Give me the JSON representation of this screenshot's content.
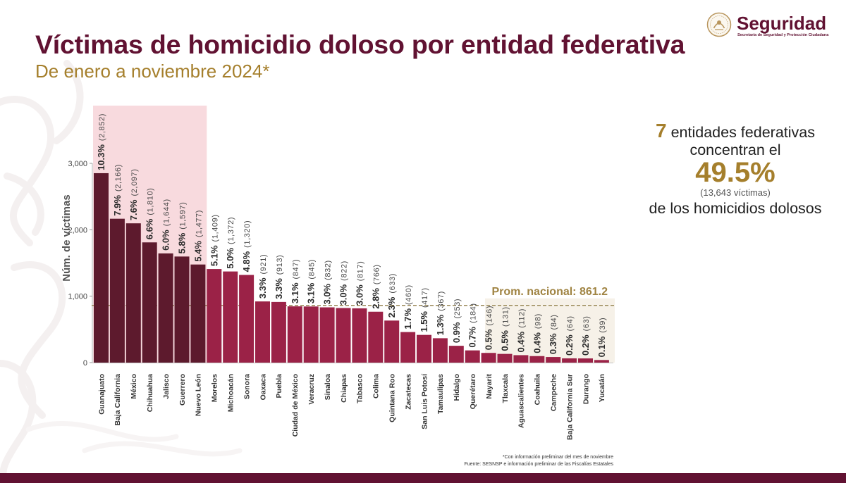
{
  "header": {
    "title": "Víctimas de homicidio doloso por entidad federativa",
    "subtitle": "De enero a noviembre 2024*"
  },
  "logo": {
    "icon": "national-seal-icon",
    "name": "Seguridad",
    "agency": "Secretaría de Seguridad y Protección Ciudadana"
  },
  "summary": {
    "count": "7",
    "line1": "entidades federativas",
    "line2": "concentran el",
    "percent": "49.5%",
    "victims": "(13,643 víctimas)",
    "line3": "de los homicidios dolosos"
  },
  "footnotes": {
    "note": "*Con información preliminar del mes de noviembre",
    "source": "Fuente: SESNSP e información preliminar de las Fiscalías Estatales"
  },
  "colors": {
    "brand_maroon": "#611232",
    "accent_gold": "#a57f2c",
    "highlight_bar": "#5d1a2d",
    "bar": "#9b2247",
    "highlight_band": "#f8dade",
    "below_average_band": "#f6f1e8",
    "average_line": "#9b8a5a",
    "footer_band": "#611232"
  },
  "chart_data": {
    "type": "bar",
    "ylabel": "Núm. de víctimas",
    "ylim": [
      0,
      3000
    ],
    "y_ticks": [
      0,
      1000,
      2000,
      3000
    ],
    "y_tick_labels": [
      "0",
      "1,000",
      "2,000",
      "3,000"
    ],
    "categories": [
      "Guanajuato",
      "Baja California",
      "México",
      "Chihuahua",
      "Jalisco",
      "Guerrero",
      "Nuevo León",
      "Morelos",
      "Michoacán",
      "Sonora",
      "Oaxaca",
      "Puebla",
      "Ciudad de México",
      "Veracruz",
      "Sinaloa",
      "Chiapas",
      "Tabasco",
      "Colima",
      "Quintana Roo",
      "Zacatecas",
      "San Luis Potosí",
      "Tamaulipas",
      "Hidalgo",
      "Querétaro",
      "Nayarit",
      "Tlaxcala",
      "Aguascalientes",
      "Coahuila",
      "Campeche",
      "Baja California Sur",
      "Durango",
      "Yucatán"
    ],
    "values": [
      2852,
      2166,
      2097,
      1810,
      1644,
      1597,
      1477,
      1409,
      1372,
      1320,
      921,
      913,
      847,
      845,
      832,
      822,
      817,
      766,
      633,
      460,
      417,
      367,
      253,
      184,
      146,
      131,
      112,
      98,
      84,
      64,
      63,
      39
    ],
    "value_labels": [
      "(2,852)",
      "(2,166)",
      "(2,097)",
      "(1,810)",
      "(1,644)",
      "(1,597)",
      "(1,477)",
      "(1,409)",
      "(1,372)",
      "(1,320)",
      "(921)",
      "(913)",
      "(847)",
      "(845)",
      "(832)",
      "(822)",
      "(817)",
      "(766)",
      "(633)",
      "(460)",
      "(417)",
      "(367)",
      "(253)",
      "(184)",
      "(146)",
      "(131)",
      "(112)",
      "(98)",
      "(84)",
      "(64)",
      "(63)",
      "(39)"
    ],
    "percent_labels": [
      "10.3%",
      "7.9%",
      "7.6%",
      "6.6%",
      "6.0%",
      "5.8%",
      "5.4%",
      "5.1%",
      "5.0%",
      "4.8%",
      "3.3%",
      "3.3%",
      "3.1%",
      "3.1%",
      "3.0%",
      "3.0%",
      "3.0%",
      "2.8%",
      "2.3%",
      "1.7%",
      "1.5%",
      "1.3%",
      "0.9%",
      "0.7%",
      "0.5%",
      "0.5%",
      "0.4%",
      "0.4%",
      "0.3%",
      "0.2%",
      "0.2%",
      "0.1%"
    ],
    "highlight_count": 7,
    "average": {
      "value": 861.2,
      "label": "Prom. nacional: 861.2"
    },
    "grid": false,
    "legend": "none"
  }
}
